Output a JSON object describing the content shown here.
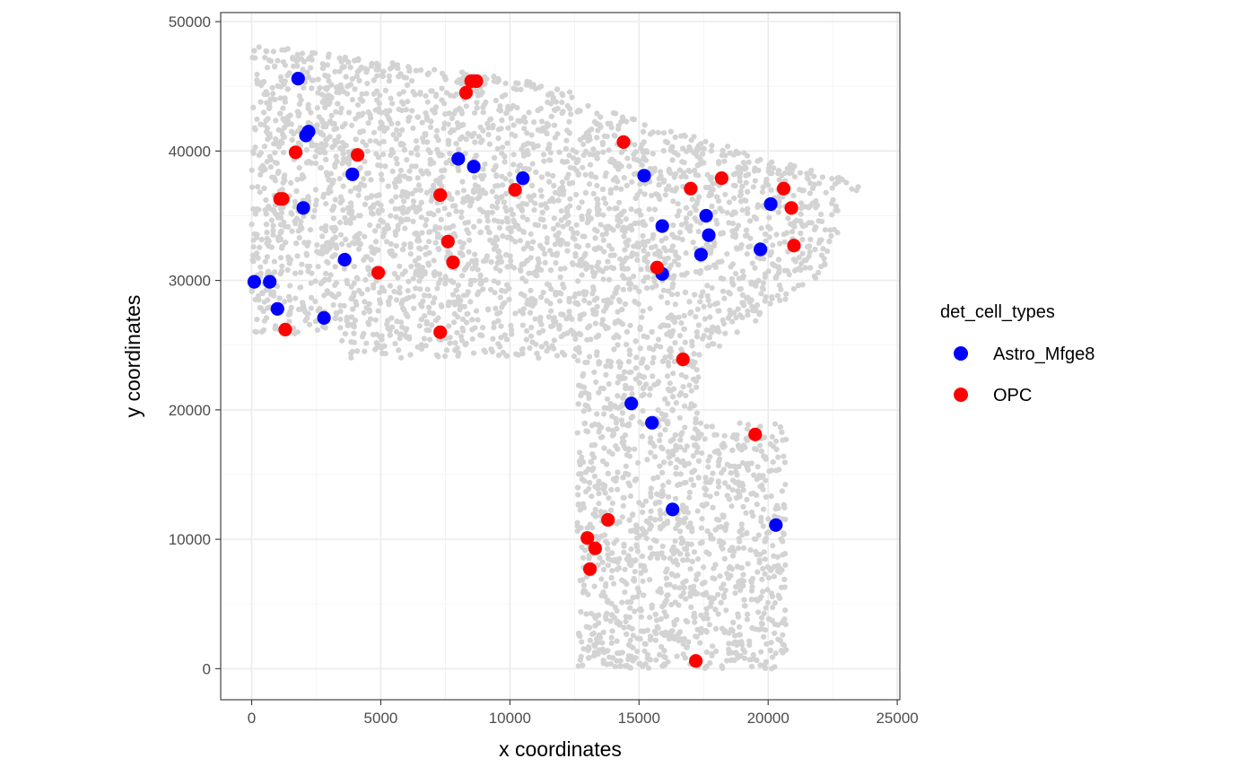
{
  "chart_data": {
    "type": "scatter",
    "title": "",
    "xlabel": "x coordinates",
    "ylabel": "y coordinates",
    "xlim": [
      -1200,
      25100
    ],
    "ylim": [
      -2400,
      50700
    ],
    "x_ticks": [
      0,
      5000,
      10000,
      15000,
      20000,
      25000
    ],
    "y_ticks": [
      0,
      10000,
      20000,
      30000,
      40000,
      50000
    ],
    "x_tick_labels": [
      "0",
      "5000",
      "10000",
      "15000",
      "20000",
      "25000"
    ],
    "y_tick_labels": [
      "0",
      "10000",
      "20000",
      "30000",
      "40000",
      "50000"
    ],
    "grid": true,
    "legend_position": "right",
    "legend_title": "det_cell_types",
    "background_series": {
      "name": "other cells",
      "color": "#D3D3D3",
      "description_regions": "dense grey cell cloud"
    },
    "series": [
      {
        "name": "Astro_Mfge8",
        "color": "#0000FF",
        "points": [
          [
            1800,
            45600
          ],
          [
            2100,
            41200
          ],
          [
            2200,
            41500
          ],
          [
            2000,
            35600
          ],
          [
            3900,
            38200
          ],
          [
            3600,
            31600
          ],
          [
            100,
            29900
          ],
          [
            700,
            29900
          ],
          [
            1000,
            27800
          ],
          [
            2800,
            27100
          ],
          [
            8000,
            39400
          ],
          [
            8600,
            38800
          ],
          [
            10500,
            37900
          ],
          [
            15200,
            38100
          ],
          [
            15900,
            34200
          ],
          [
            17600,
            35000
          ],
          [
            17700,
            33500
          ],
          [
            17400,
            32000
          ],
          [
            15900,
            30500
          ],
          [
            19700,
            32400
          ],
          [
            20100,
            35900
          ],
          [
            14700,
            20500
          ],
          [
            15500,
            19000
          ],
          [
            16300,
            12300
          ],
          [
            20300,
            11100
          ]
        ]
      },
      {
        "name": "OPC",
        "color": "#FF0000",
        "points": [
          [
            8500,
            45400
          ],
          [
            8700,
            45400
          ],
          [
            8300,
            44500
          ],
          [
            1700,
            39900
          ],
          [
            4100,
            39700
          ],
          [
            1100,
            36300
          ],
          [
            1200,
            36300
          ],
          [
            7300,
            36600
          ],
          [
            10200,
            37000
          ],
          [
            14400,
            40700
          ],
          [
            17000,
            37100
          ],
          [
            18200,
            37900
          ],
          [
            20600,
            37100
          ],
          [
            20900,
            35600
          ],
          [
            21000,
            32700
          ],
          [
            7600,
            33000
          ],
          [
            7800,
            31400
          ],
          [
            4900,
            30600
          ],
          [
            1300,
            26200
          ],
          [
            7300,
            26000
          ],
          [
            15700,
            31000
          ],
          [
            16700,
            23900
          ],
          [
            19500,
            18100
          ],
          [
            13800,
            11500
          ],
          [
            13000,
            10100
          ],
          [
            13300,
            9300
          ],
          [
            13100,
            7700
          ],
          [
            17200,
            600
          ]
        ]
      }
    ]
  }
}
